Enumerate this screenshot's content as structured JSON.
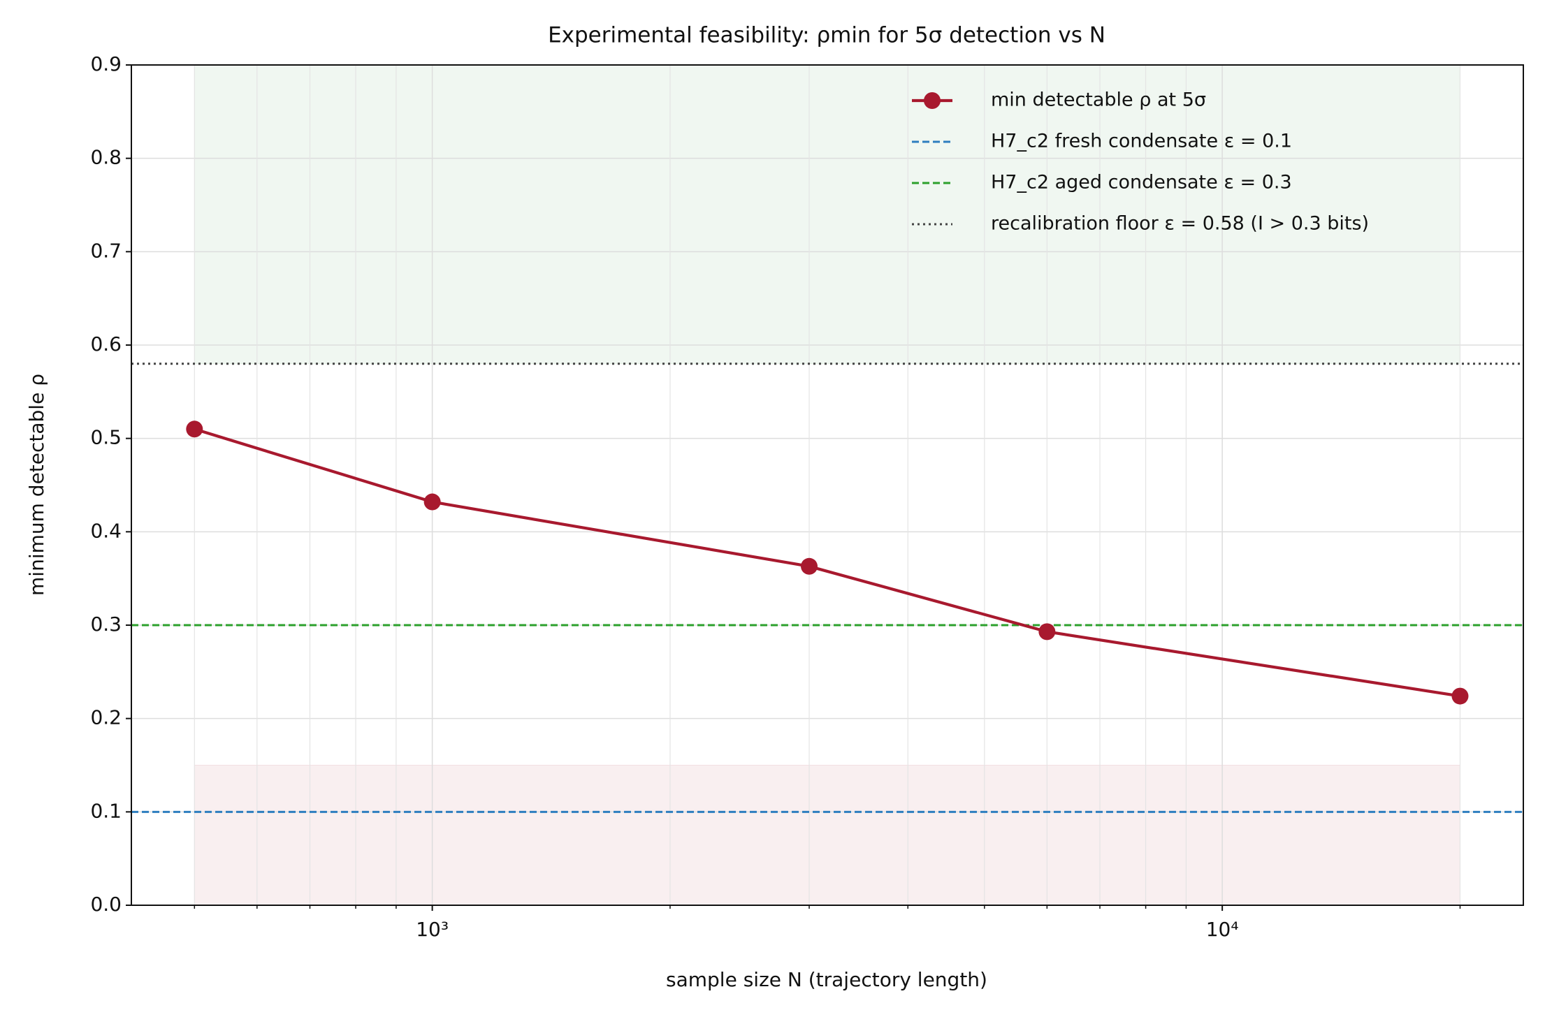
{
  "chart_data": {
    "type": "line",
    "title": "Experimental feasibility: ρmin for 5σ detection vs N",
    "x_label": "sample size N (trajectory length)",
    "y_label": "minimum detectable ρ",
    "x_scale": "log",
    "x": [
      500,
      1000,
      3000,
      6000,
      20000
    ],
    "series": [
      {
        "name": "min detectable ρ at 5σ",
        "color": "#a8192e",
        "values": [
          0.51,
          0.432,
          0.363,
          0.293,
          0.224
        ]
      }
    ],
    "hlines": [
      {
        "name": "H7_c2 fresh condensate ε = 0.1",
        "color": "#2e7ebf",
        "style": "dashed",
        "value": 0.1
      },
      {
        "name": "H7_c2 aged condensate ε = 0.3",
        "color": "#2ca02c",
        "style": "dashed",
        "value": 0.3
      },
      {
        "name": "recalibration floor ε = 0.58 (I > 0.3 bits)",
        "color": "#444444",
        "style": "dotted",
        "value": 0.58
      }
    ],
    "spans": [
      {
        "color": "#2e8b3e",
        "x": [
          500,
          20000
        ],
        "y": [
          0.58,
          0.9
        ]
      },
      {
        "color": "#a8192e",
        "x": [
          500,
          20000
        ],
        "y": [
          0,
          0.15
        ]
      }
    ],
    "xlim": [
      416,
      24050
    ],
    "ylim": [
      0,
      0.9
    ],
    "xticks": [
      {
        "value": 1000,
        "label": "10³"
      },
      {
        "value": 10000,
        "label": "10⁴"
      }
    ],
    "xminor_ticks": [
      500,
      600,
      700,
      800,
      900,
      2000,
      3000,
      4000,
      5000,
      6000,
      7000,
      8000,
      9000,
      20000
    ],
    "yticks": [
      {
        "value": 0,
        "label": "0.0"
      },
      0.1,
      0.2,
      0.3,
      0.4,
      0.5,
      0.6,
      0.7,
      0.8,
      0.9
    ],
    "grid": true,
    "legend": "upper right"
  }
}
